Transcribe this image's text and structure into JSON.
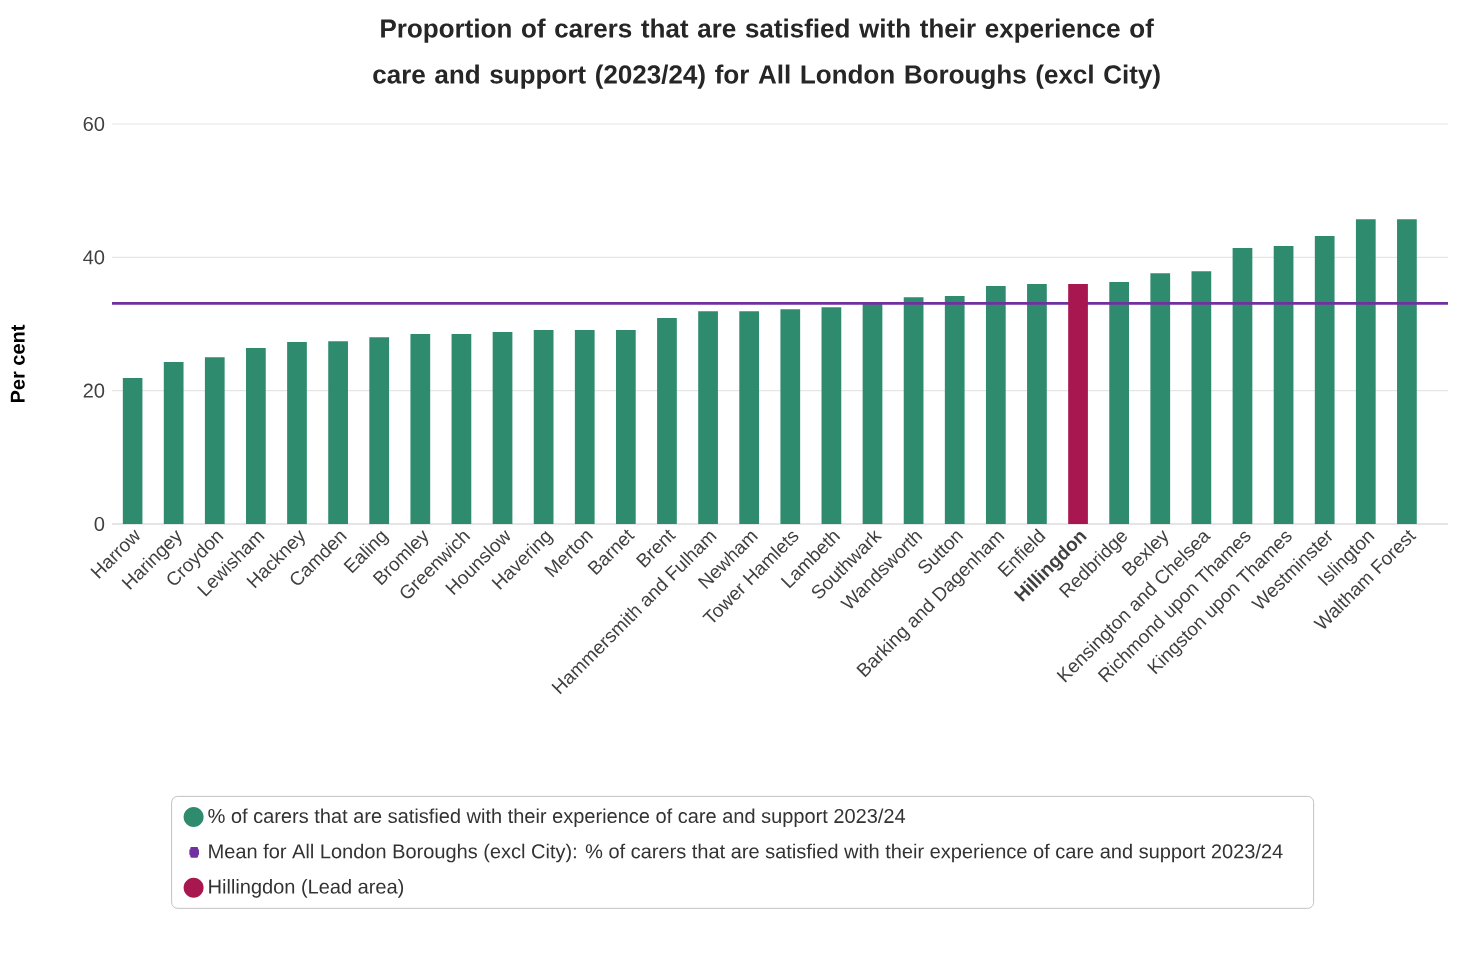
{
  "chart_data": {
    "type": "bar",
    "title": "Proportion of carers that are satisfied with their experience of care and support (2023/24) for All London Boroughs (excl City)",
    "ylabel": "Per cent",
    "categories": [
      "Harrow",
      "Haringey",
      "Croydon",
      "Lewisham",
      "Hackney",
      "Camden",
      "Ealing",
      "Bromley",
      "Greenwich",
      "Hounslow",
      "Havering",
      "Merton",
      "Barnet",
      "Brent",
      "Hammersmith and Fulham",
      "Newham",
      "Tower Hamlets",
      "Lambeth",
      "Southwark",
      "Wandsworth",
      "Sutton",
      "Barking and Dagenham",
      "Enfield",
      "**Hillingdon**",
      "Redbridge",
      "Bexley",
      "Kensington and Chelsea",
      "Richmond upon Thames",
      "Kingston upon Thames",
      "Westminster",
      "Islington",
      "Waltham Forest"
    ],
    "series": [
      {
        "name": "% of carers that are satisfied with their experience of care and support 2023/24",
        "color": "#2e8b6e",
        "values": [
          21.9,
          24.3,
          25.0,
          26.4,
          27.3,
          27.4,
          28.0,
          28.5,
          28.5,
          28.8,
          29.1,
          29.1,
          29.1,
          30.9,
          31.9,
          31.9,
          32.2,
          32.5,
          33.1,
          34.0,
          34.2,
          35.7,
          36.0,
          null,
          36.3,
          37.6,
          37.9,
          41.4,
          41.7,
          43.2,
          45.7,
          45.7
        ]
      },
      {
        "name": "Hillingdon (Lead area)",
        "color": "#a8174f",
        "values": [
          null,
          null,
          null,
          null,
          null,
          null,
          null,
          null,
          null,
          null,
          null,
          null,
          null,
          null,
          null,
          null,
          null,
          null,
          null,
          null,
          null,
          null,
          null,
          36.0,
          null,
          null,
          null,
          null,
          null,
          null,
          null,
          null
        ]
      }
    ],
    "ref_lines": [
      {
        "axis": "y",
        "value": 33.1,
        "label": "Mean for All London Boroughs (excl City): % of carers that are satisfied with their experience of care and support 2023/24",
        "color": "#7030a0"
      }
    ],
    "ylim": [
      0,
      60
    ],
    "yticks": [
      0,
      20,
      40,
      60
    ],
    "grid": "y",
    "legend": "bottom"
  }
}
